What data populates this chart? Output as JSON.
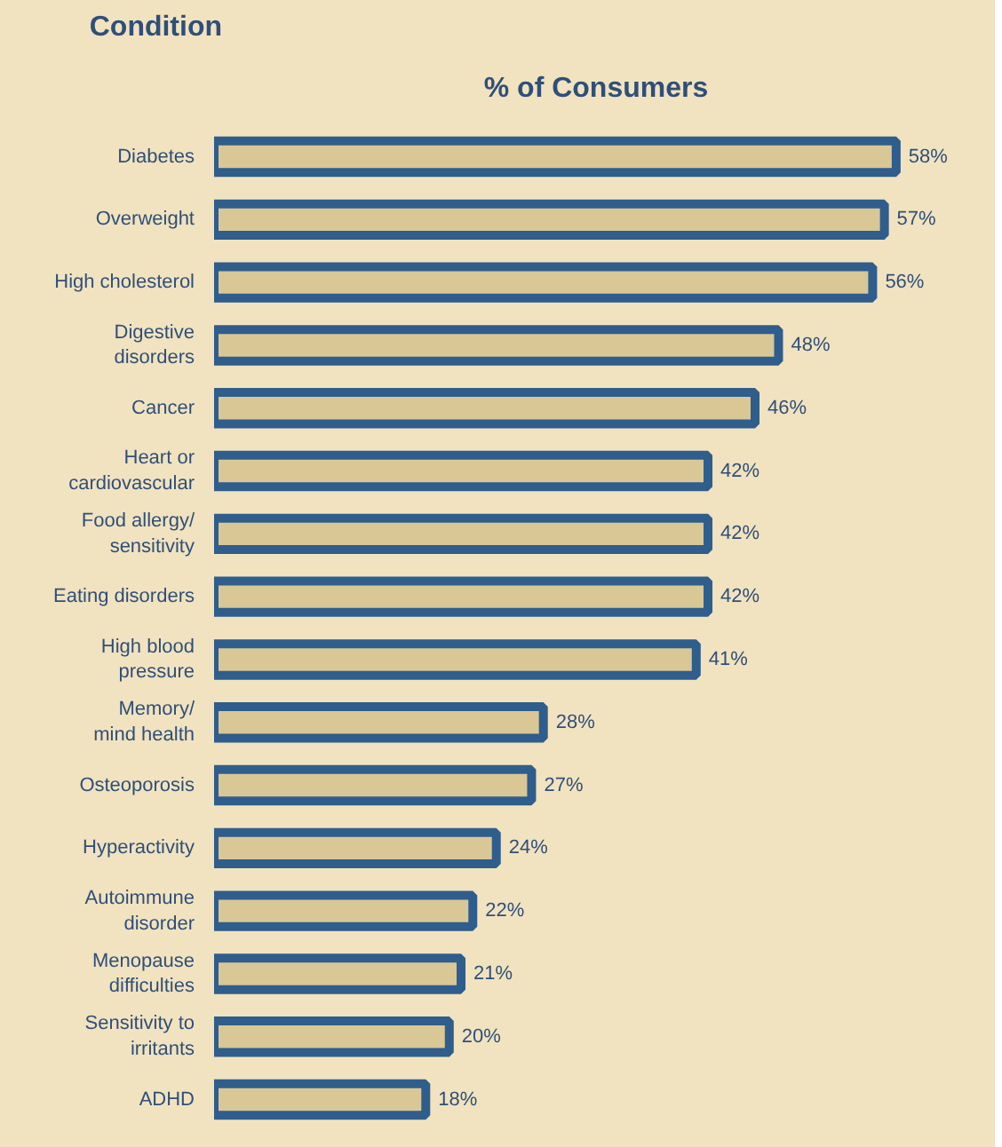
{
  "chart_data": {
    "type": "bar",
    "orientation": "horizontal",
    "title": "% of Consumers",
    "ylabel": "Condition",
    "categories": [
      "Diabetes",
      "Overweight",
      "High cholesterol",
      "Digestive\ndisorders",
      "Cancer",
      "Heart or\ncardiovascular",
      "Food allergy/\nsensitivity",
      "Eating disorders",
      "High blood\npressure",
      "Memory/\nmind health",
      "Osteoporosis",
      "Hyperactivity",
      "Autoimmune\ndisorder",
      "Menopause\ndifficulties",
      "Sensitivity to\nirritants",
      "ADHD"
    ],
    "values": [
      58,
      57,
      56,
      48,
      46,
      42,
      42,
      42,
      41,
      28,
      27,
      24,
      22,
      21,
      20,
      18
    ],
    "value_labels": [
      "58%",
      "57%",
      "56%",
      "48%",
      "46%",
      "42%",
      "42%",
      "42%",
      "41%",
      "28%",
      "27%",
      "24%",
      "22%",
      "21%",
      "20%",
      "18%"
    ],
    "color": "#2f5d8c"
  }
}
